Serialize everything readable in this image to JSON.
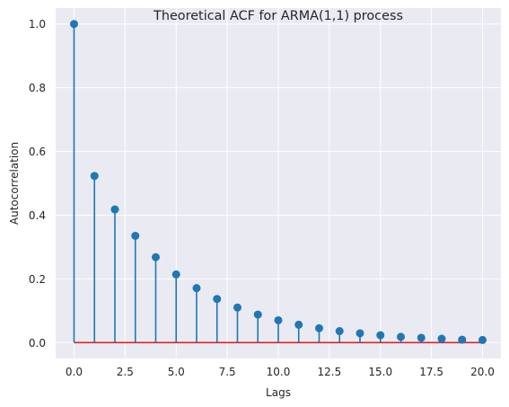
{
  "chart_data": {
    "type": "stem",
    "title": "Theoretical ACF for ARMA(1,1) process",
    "xlabel": "Lags",
    "ylabel": "Autocorrelation",
    "x": [
      0,
      1,
      2,
      3,
      4,
      5,
      6,
      7,
      8,
      9,
      10,
      11,
      12,
      13,
      14,
      15,
      16,
      17,
      18,
      19,
      20
    ],
    "values": [
      1.0,
      0.523,
      0.418,
      0.335,
      0.268,
      0.214,
      0.171,
      0.137,
      0.11,
      0.088,
      0.07,
      0.056,
      0.045,
      0.036,
      0.029,
      0.023,
      0.018,
      0.015,
      0.012,
      0.009,
      0.008
    ],
    "xlim": [
      -0.9,
      20.9
    ],
    "ylim": [
      -0.05,
      1.05
    ],
    "xticks": [
      0,
      2.5,
      5,
      7.5,
      10,
      12.5,
      15,
      17.5,
      20
    ],
    "xtick_labels": [
      "0.0",
      "2.5",
      "5.0",
      "7.5",
      "10.0",
      "12.5",
      "15.0",
      "17.5",
      "20.0"
    ],
    "yticks": [
      0,
      0.2,
      0.4,
      0.6,
      0.8,
      1.0
    ],
    "ytick_labels": [
      "0.0",
      "0.2",
      "0.4",
      "0.6",
      "0.8",
      "1.0"
    ],
    "grid": true,
    "colors": {
      "stem": "#1f77b4",
      "baseline": "#d62728",
      "plot_background": "#eaeaf2",
      "grid": "#ffffff"
    }
  }
}
